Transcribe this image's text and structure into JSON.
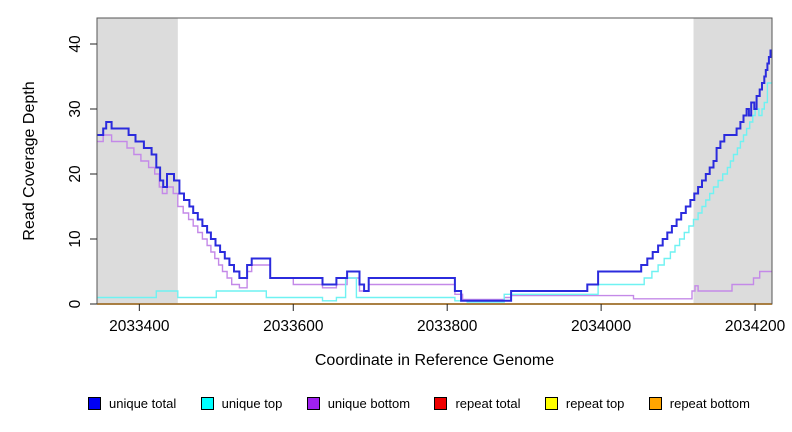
{
  "chart_data": {
    "type": "line",
    "subtype": "step",
    "title": "",
    "xlabel": "Coordinate in Reference Genome",
    "ylabel": "Read Coverage Depth",
    "xlim": [
      2033345,
      2034222
    ],
    "ylim": [
      0,
      44
    ],
    "x_ticks": [
      2033400,
      2033600,
      2033800,
      2034000,
      2034200
    ],
    "y_ticks": [
      0,
      10,
      20,
      30,
      40
    ],
    "grid": false,
    "legend_position": "bottom",
    "shaded_regions": [
      {
        "x0": 2033345,
        "x1": 2033450,
        "color": "#DCDCDC"
      },
      {
        "x0": 2034120,
        "x1": 2034222,
        "color": "#DCDCDC"
      }
    ],
    "legend": [
      {
        "label": "unique total",
        "color": "#0000F5"
      },
      {
        "label": "unique top",
        "color": "#00FFFF"
      },
      {
        "label": "unique bottom",
        "color": "#A020F0"
      },
      {
        "label": "repeat total",
        "color": "#EE0000"
      },
      {
        "label": "repeat top",
        "color": "#FFFF00"
      },
      {
        "label": "repeat bottom",
        "color": "#FFA500"
      }
    ],
    "series": [
      {
        "name": "repeat total",
        "line_color": "#EE0000",
        "line_width": 1.2,
        "points": [
          [
            2033345,
            0
          ]
        ]
      },
      {
        "name": "repeat top",
        "line_color": "#FFFF00",
        "line_width": 1.2,
        "points": [
          [
            2033345,
            0
          ]
        ]
      },
      {
        "name": "repeat bottom",
        "line_color": "#FF9E14",
        "line_width": 1.8,
        "points": [
          [
            2033345,
            0
          ]
        ]
      },
      {
        "name": "unique bottom",
        "line_color": "#C489E8",
        "line_width": 1.4,
        "points": [
          [
            2033345,
            25
          ],
          [
            2033353,
            26
          ],
          [
            2033364,
            25
          ],
          [
            2033384,
            24
          ],
          [
            2033393,
            23
          ],
          [
            2033402,
            22
          ],
          [
            2033412,
            21
          ],
          [
            2033420,
            20
          ],
          [
            2033426,
            18
          ],
          [
            2033430,
            17
          ],
          [
            2033436,
            18
          ],
          [
            2033444,
            17
          ],
          [
            2033450,
            15
          ],
          [
            2033457,
            14
          ],
          [
            2033464,
            13
          ],
          [
            2033470,
            12
          ],
          [
            2033476,
            11
          ],
          [
            2033482,
            10
          ],
          [
            2033488,
            9
          ],
          [
            2033493,
            8
          ],
          [
            2033498,
            7
          ],
          [
            2033503,
            6
          ],
          [
            2033508,
            5
          ],
          [
            2033514,
            4
          ],
          [
            2033520,
            3
          ],
          [
            2033530,
            2.5
          ],
          [
            2033540,
            5
          ],
          [
            2033546,
            6
          ],
          [
            2033570,
            4
          ],
          [
            2033600,
            3
          ],
          [
            2033638,
            2.5
          ],
          [
            2033656,
            3
          ],
          [
            2033670,
            4
          ],
          [
            2033686,
            2
          ],
          [
            2033698,
            3
          ],
          [
            2033810,
            1.5
          ],
          [
            2033820,
            0.7
          ],
          [
            2033874,
            1
          ],
          [
            2033883,
            1.3
          ],
          [
            2034042,
            0.8
          ],
          [
            2034118,
            2
          ],
          [
            2034122,
            2.8
          ],
          [
            2034126,
            2
          ],
          [
            2034170,
            3
          ],
          [
            2034198,
            4
          ],
          [
            2034206,
            5
          ]
        ]
      },
      {
        "name": "unique top",
        "line_color": "#6FF2F2",
        "line_width": 1.4,
        "points": [
          [
            2033345,
            1
          ],
          [
            2033422,
            2
          ],
          [
            2033450,
            1
          ],
          [
            2033500,
            2
          ],
          [
            2033565,
            1
          ],
          [
            2033638,
            0.5
          ],
          [
            2033656,
            1
          ],
          [
            2033668,
            4
          ],
          [
            2033682,
            1
          ],
          [
            2033810,
            0.5
          ],
          [
            2033826,
            0.3
          ],
          [
            2033874,
            1.5
          ],
          [
            2033996,
            3
          ],
          [
            2034056,
            4
          ],
          [
            2034066,
            5
          ],
          [
            2034074,
            6
          ],
          [
            2034082,
            7
          ],
          [
            2034090,
            8
          ],
          [
            2034096,
            9
          ],
          [
            2034102,
            10
          ],
          [
            2034108,
            11
          ],
          [
            2034114,
            12
          ],
          [
            2034120,
            13
          ],
          [
            2034126,
            14
          ],
          [
            2034131,
            15
          ],
          [
            2034136,
            16
          ],
          [
            2034141,
            17
          ],
          [
            2034146,
            18
          ],
          [
            2034152,
            19
          ],
          [
            2034158,
            20
          ],
          [
            2034164,
            21
          ],
          [
            2034168,
            22
          ],
          [
            2034172,
            23
          ],
          [
            2034177,
            24
          ],
          [
            2034181,
            25
          ],
          [
            2034185,
            26
          ],
          [
            2034189,
            27
          ],
          [
            2034193,
            28
          ],
          [
            2034197,
            29
          ],
          [
            2034200,
            30
          ],
          [
            2034205,
            29
          ],
          [
            2034209,
            30
          ],
          [
            2034212,
            31
          ],
          [
            2034216,
            34
          ]
        ]
      },
      {
        "name": "unique total",
        "line_color": "#2B2BDD",
        "line_width": 2,
        "points": [
          [
            2033345,
            26
          ],
          [
            2033353,
            27
          ],
          [
            2033357,
            28
          ],
          [
            2033364,
            27
          ],
          [
            2033386,
            26
          ],
          [
            2033395,
            25
          ],
          [
            2033406,
            24
          ],
          [
            2033416,
            23
          ],
          [
            2033422,
            21
          ],
          [
            2033427,
            19
          ],
          [
            2033431,
            18
          ],
          [
            2033436,
            20
          ],
          [
            2033445,
            19
          ],
          [
            2033452,
            17
          ],
          [
            2033458,
            16
          ],
          [
            2033465,
            15
          ],
          [
            2033470,
            14
          ],
          [
            2033476,
            13
          ],
          [
            2033482,
            12
          ],
          [
            2033488,
            11
          ],
          [
            2033493,
            10
          ],
          [
            2033499,
            9
          ],
          [
            2033505,
            8
          ],
          [
            2033511,
            7
          ],
          [
            2033517,
            6
          ],
          [
            2033523,
            5
          ],
          [
            2033530,
            4
          ],
          [
            2033540,
            6
          ],
          [
            2033546,
            7
          ],
          [
            2033570,
            4
          ],
          [
            2033638,
            3
          ],
          [
            2033656,
            4
          ],
          [
            2033670,
            5
          ],
          [
            2033686,
            3
          ],
          [
            2033692,
            2
          ],
          [
            2033698,
            4
          ],
          [
            2033810,
            2
          ],
          [
            2033818,
            0.5
          ],
          [
            2033883,
            2
          ],
          [
            2033982,
            3
          ],
          [
            2033996,
            5
          ],
          [
            2034052,
            6
          ],
          [
            2034060,
            7
          ],
          [
            2034067,
            8
          ],
          [
            2034074,
            9
          ],
          [
            2034080,
            10
          ],
          [
            2034086,
            11
          ],
          [
            2034092,
            12
          ],
          [
            2034098,
            13
          ],
          [
            2034104,
            14
          ],
          [
            2034110,
            15
          ],
          [
            2034116,
            16
          ],
          [
            2034121,
            17
          ],
          [
            2034126,
            18
          ],
          [
            2034131,
            19
          ],
          [
            2034136,
            20
          ],
          [
            2034141,
            21
          ],
          [
            2034146,
            22
          ],
          [
            2034150,
            24
          ],
          [
            2034155,
            25
          ],
          [
            2034160,
            26
          ],
          [
            2034176,
            27
          ],
          [
            2034181,
            28
          ],
          [
            2034185,
            29
          ],
          [
            2034189,
            30
          ],
          [
            2034192,
            29
          ],
          [
            2034195,
            31
          ],
          [
            2034199,
            30
          ],
          [
            2034202,
            32
          ],
          [
            2034206,
            33
          ],
          [
            2034209,
            34
          ],
          [
            2034212,
            35
          ],
          [
            2034214,
            36
          ],
          [
            2034216,
            37
          ],
          [
            2034218,
            38
          ],
          [
            2034220,
            39
          ]
        ]
      }
    ]
  }
}
